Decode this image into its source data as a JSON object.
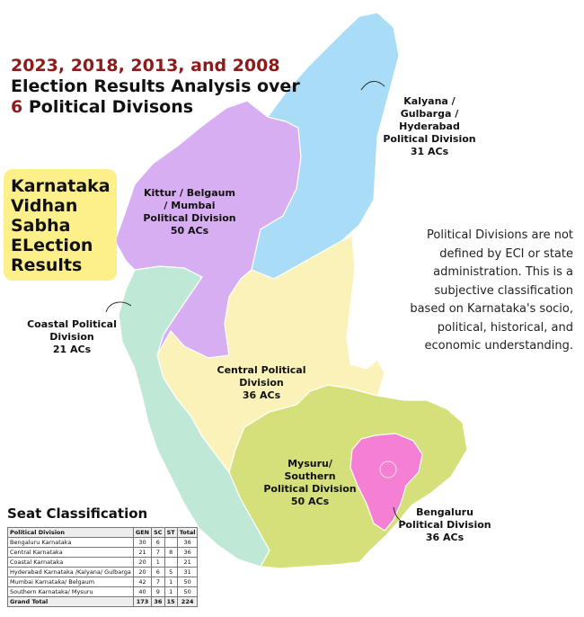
{
  "colors": {
    "kalyana": "#a9dcf7",
    "kittur": "#d8aef3",
    "coastal": "#bfe9d6",
    "central": "#faf2b8",
    "mysuru": "#d6e07a",
    "bengaluru": "#f57fd3",
    "title_red": "#8e1b1b",
    "badge": "#fdf08a"
  },
  "title": {
    "line1": "2023, 2018, 2013, and 2008",
    "line2": "Election Results Analysis over",
    "line3_num": "6",
    "line3_text": "Political Divisons"
  },
  "badge": {
    "lines": [
      "Karnataka",
      "Vidhan",
      "Sabha",
      "ELection",
      "Results"
    ]
  },
  "divisions": {
    "kalyana": [
      "Kalyana /",
      "Gulbarga /",
      "Hyderabad",
      "Political Division",
      "31 ACs"
    ],
    "kittur": [
      "Kittur / Belgaum",
      "/ Mumbai",
      "Political Division",
      "50 ACs"
    ],
    "coastal": [
      "Coastal  Political",
      "Division",
      "21 ACs"
    ],
    "central": [
      "Central Political",
      "Division",
      "36 ACs"
    ],
    "mysuru": [
      "Mysuru/",
      "Southern",
      "Political Division",
      "50 ACs"
    ],
    "bengaluru": [
      "Bengaluru",
      "Political Division",
      "36 ACs"
    ]
  },
  "note": {
    "lines": [
      "Political Divisions are not",
      "defined by ECI or state",
      "administration. This is a",
      "subjective classification",
      "based on Karnataka's socio,",
      "political, historical, and",
      "economic understanding."
    ]
  },
  "seat_table": {
    "title": "Seat Classification",
    "headers": [
      "Political Division",
      "GEN",
      "SC",
      "ST",
      "Total"
    ],
    "rows": [
      [
        "Bengaluru Karnataka",
        "30",
        "6",
        "",
        "36"
      ],
      [
        "Central Karnataka",
        "21",
        "7",
        "8",
        "36"
      ],
      [
        "Coastal Karnataka",
        "20",
        "1",
        "",
        "21"
      ],
      [
        "Hyderabad Karnataka /Kalyana/ Gulbarga",
        "20",
        "6",
        "5",
        "31"
      ],
      [
        "Mumbai Karnataka/ Belgaum",
        "42",
        "7",
        "1",
        "50"
      ],
      [
        "Southern Karnataka/ Mysuru",
        "40",
        "9",
        "1",
        "50"
      ]
    ],
    "total": [
      "Grand Total",
      "173",
      "36",
      "15",
      "224"
    ]
  }
}
